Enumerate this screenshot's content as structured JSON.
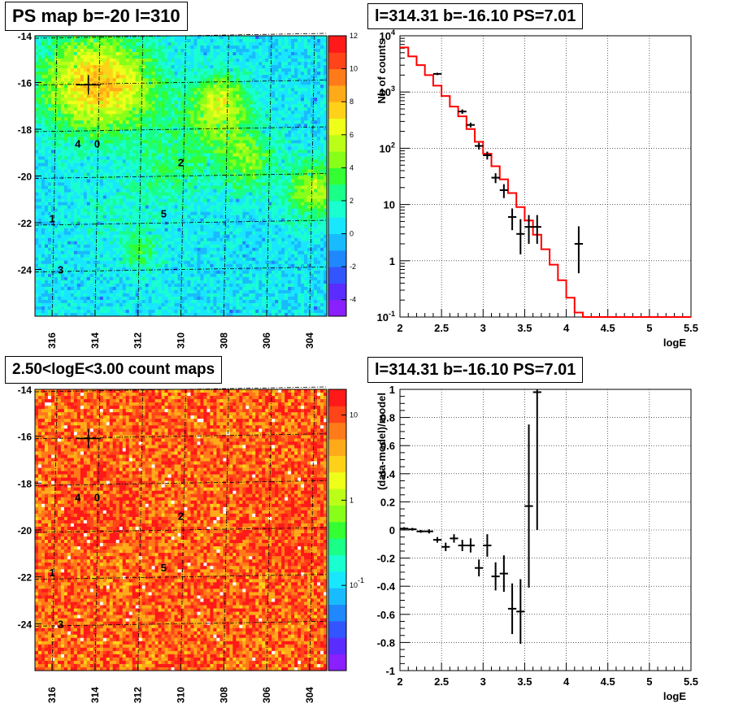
{
  "panels": {
    "top_left_title": "PS map b=-20 l=310",
    "top_right_title": "l=314.31 b=-16.10 PS=7.01",
    "bottom_left_title": "2.50<logE<3.00 count maps",
    "bottom_right_title": "l=314.31 b=-16.10 PS=7.01"
  },
  "colors": {
    "model_line": "#ff0000",
    "data_points": "#000000"
  },
  "chart_data": [
    {
      "type": "heatmap",
      "title": "PS map b=-20 l=310",
      "x_ticks": [
        "316",
        "314",
        "312",
        "310",
        "308",
        "306",
        "304"
      ],
      "y_ticks": [
        "-14",
        "-16",
        "-18",
        "-20",
        "-22",
        "-24"
      ],
      "xlim": [
        316.8,
        303.2
      ],
      "ylim": [
        -26,
        -14
      ],
      "colorbar": {
        "scale": "linear",
        "range": [
          -5,
          12
        ],
        "ticks": [
          "12",
          "10",
          "8",
          "6",
          "4",
          "2",
          "0",
          "-2",
          "-4"
        ]
      },
      "source_labels": [
        {
          "label": "0",
          "l": 313.9,
          "b": -18.6
        },
        {
          "label": "4",
          "l": 314.8,
          "b": -18.6
        },
        {
          "label": "2",
          "l": 310.0,
          "b": -19.4
        },
        {
          "label": "5",
          "l": 310.8,
          "b": -21.6
        },
        {
          "label": "1",
          "l": 316.0,
          "b": -21.8
        },
        {
          "label": "3",
          "l": 315.6,
          "b": -24.0
        }
      ],
      "marker": {
        "l": 314.31,
        "b": -16.1
      }
    },
    {
      "type": "line",
      "title": "l=314.31 b=-16.10 PS=7.01",
      "xlabel": "logE",
      "ylabel": "Nb of counts",
      "xlim": [
        2,
        5.5
      ],
      "ylim": [
        0.1,
        10000
      ],
      "y_scale": "log",
      "grid": true,
      "x_ticks": [
        "2",
        "2.5",
        "3",
        "3.5",
        "4",
        "4.5",
        "5",
        "5.5"
      ],
      "y_ticks": [
        "10-1",
        "1",
        "10",
        "102",
        "103",
        "104"
      ],
      "series": [
        {
          "kind": "model_step",
          "bin_width": 0.1,
          "x": [
            2.0,
            2.1,
            2.2,
            2.3,
            2.4,
            2.5,
            2.6,
            2.7,
            2.8,
            2.9,
            3.0,
            3.1,
            3.2,
            3.3,
            3.4,
            3.5,
            3.6,
            3.7,
            3.8,
            3.9,
            4.0,
            4.1,
            4.2,
            5.4
          ],
          "values": [
            6200,
            4300,
            3000,
            2000,
            1300,
            850,
            550,
            370,
            220,
            130,
            80,
            48,
            28,
            16,
            9,
            5.2,
            2.9,
            1.6,
            0.85,
            0.45,
            0.22,
            0.12,
            0.1,
            0.1
          ]
        },
        {
          "kind": "data_errorbars",
          "x": [
            2.45,
            2.75,
            2.85,
            2.95,
            3.05,
            3.15,
            3.25,
            3.35,
            3.45,
            3.55,
            3.65,
            4.15
          ],
          "values": [
            2100,
            450,
            260,
            110,
            75,
            30,
            18,
            6,
            3,
            4,
            4,
            2
          ],
          "err_low": [
            100,
            40,
            25,
            15,
            12,
            6,
            5,
            2.5,
            1.7,
            2,
            2,
            1.4
          ],
          "err_high": [
            100,
            40,
            25,
            15,
            12,
            6,
            5,
            2.5,
            2.5,
            2.5,
            2.5,
            2.1
          ]
        }
      ]
    },
    {
      "type": "heatmap",
      "title": "2.50<logE<3.00 count maps",
      "x_ticks": [
        "316",
        "314",
        "312",
        "310",
        "308",
        "306",
        "304"
      ],
      "y_ticks": [
        "-14",
        "-16",
        "-18",
        "-20",
        "-22",
        "-24"
      ],
      "xlim": [
        316.8,
        303.2
      ],
      "ylim": [
        -26,
        -14
      ],
      "colorbar": {
        "scale": "log",
        "range": [
          0.01,
          20
        ],
        "ticks": [
          "10",
          "1",
          "10-1"
        ]
      },
      "source_labels": [
        {
          "label": "0",
          "l": 313.9,
          "b": -18.6
        },
        {
          "label": "4",
          "l": 314.8,
          "b": -18.6
        },
        {
          "label": "2",
          "l": 310.0,
          "b": -19.4
        },
        {
          "label": "5",
          "l": 310.8,
          "b": -21.6
        },
        {
          "label": "1",
          "l": 316.0,
          "b": -21.8
        },
        {
          "label": "3",
          "l": 315.6,
          "b": -24.0
        }
      ],
      "marker": {
        "l": 314.31,
        "b": -16.1
      }
    },
    {
      "type": "scatter",
      "title": "l=314.31 b=-16.10 PS=7.01",
      "xlabel": "logE",
      "ylabel": "(data-model)/model",
      "xlim": [
        2,
        5.5
      ],
      "ylim": [
        -1,
        1
      ],
      "grid": true,
      "x_ticks": [
        "2",
        "2.5",
        "3",
        "3.5",
        "4",
        "4.5",
        "5",
        "5.5"
      ],
      "y_ticks": [
        "-1",
        "-0.8",
        "-0.6",
        "-0.4",
        "-0.2",
        "0",
        "0.2",
        "0.4",
        "0.6",
        "0.8",
        "1"
      ],
      "series": [
        {
          "kind": "data_errorbars",
          "x": [
            2.05,
            2.15,
            2.25,
            2.35,
            2.45,
            2.55,
            2.65,
            2.75,
            2.85,
            2.95,
            3.05,
            3.15,
            3.25,
            3.35,
            3.45,
            3.55,
            3.65
          ],
          "values": [
            0.01,
            0.005,
            -0.01,
            -0.01,
            -0.07,
            -0.12,
            -0.06,
            -0.11,
            -0.11,
            -0.27,
            -0.11,
            -0.33,
            -0.31,
            -0.56,
            -0.58,
            0.17,
            0.98
          ],
          "errors": [
            0.01,
            0.01,
            0.01,
            0.015,
            0.02,
            0.03,
            0.03,
            0.04,
            0.05,
            0.06,
            0.08,
            0.1,
            0.13,
            0.18,
            0.23,
            0.58,
            0.98
          ]
        }
      ]
    }
  ]
}
